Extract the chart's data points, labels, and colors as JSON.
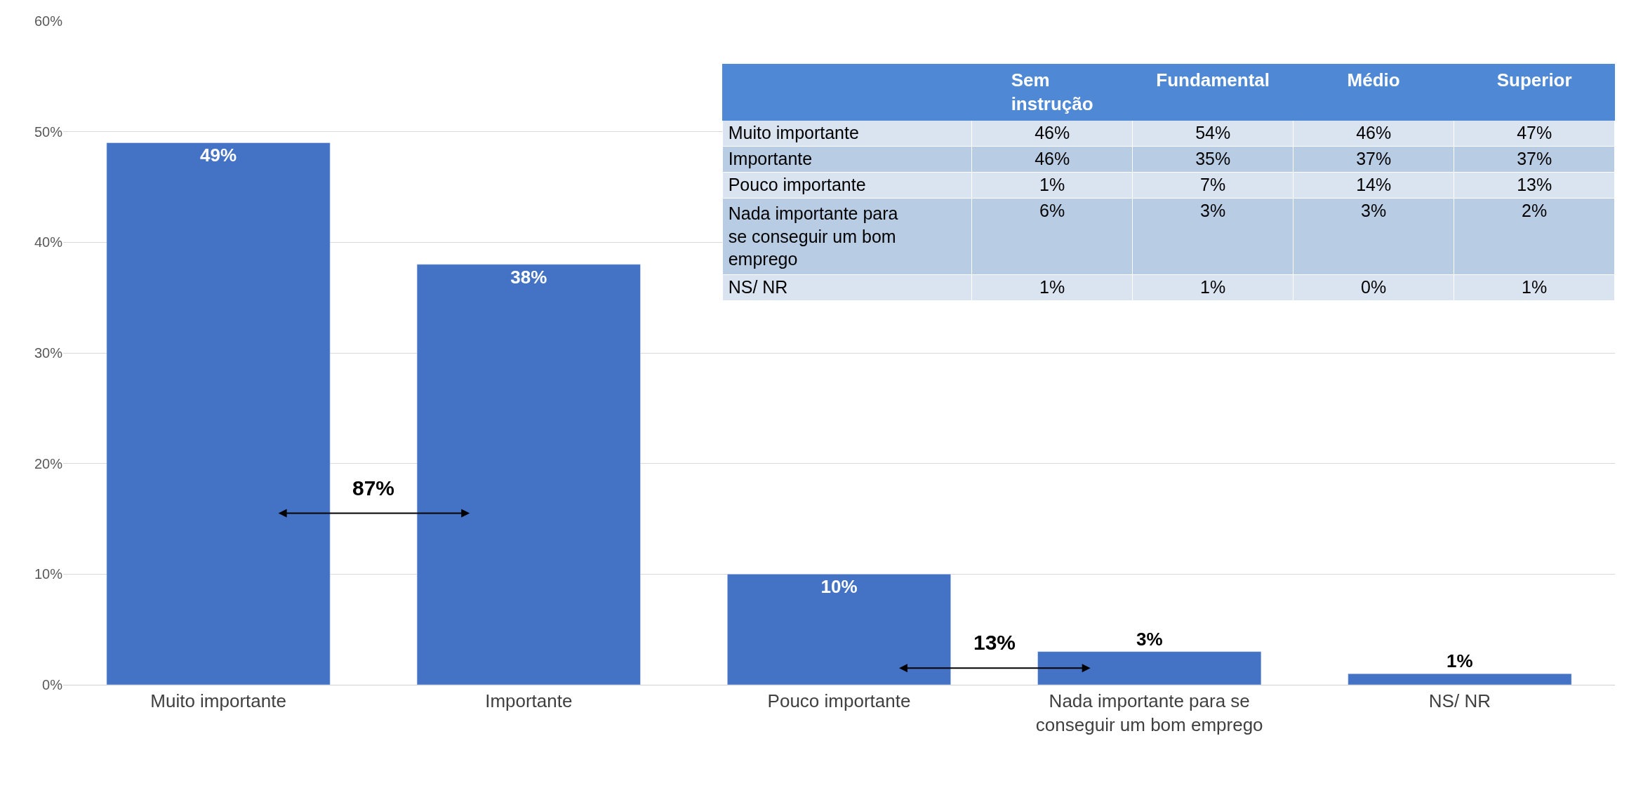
{
  "chart_data": [
    {
      "type": "bar",
      "categories": [
        "Muito importante",
        "Importante",
        "Pouco importante",
        "Nada importante para se conseguir um bom emprego",
        "NS/ NR"
      ],
      "values": [
        49,
        38,
        10,
        3,
        1
      ],
      "color": "#4472c4",
      "data_labels": true,
      "value_labels": [
        "49%",
        "38%",
        "10%",
        "3%",
        "1%"
      ],
      "ylim": [
        0,
        60
      ],
      "yticks": [
        {
          "value": 0,
          "label": "0%"
        },
        {
          "value": 10,
          "label": "10%"
        },
        {
          "value": 20,
          "label": "20%"
        },
        {
          "value": 30,
          "label": "30%"
        },
        {
          "value": 40,
          "label": "40%"
        },
        {
          "value": 50,
          "label": "50%"
        },
        {
          "value": 60,
          "label": "60%"
        }
      ],
      "grid": "y",
      "annotations": [
        "87%",
        "13%"
      ]
    },
    {
      "type": "other",
      "categories": [
        "Sem instrução",
        "Fundamental",
        "Médio",
        "Superior"
      ],
      "y_categories": [
        "Muito importante",
        "Importante",
        "Pouco importante",
        "Nada importante para se conseguir um bom emprego",
        "NS/ NR"
      ],
      "cell_labels": [
        [
          "46%",
          "54%",
          "46%",
          "47%"
        ],
        [
          "46%",
          "35%",
          "37%",
          "37%"
        ],
        [
          "1%",
          "7%",
          "14%",
          "13%"
        ],
        [
          "6%",
          "3%",
          "3%",
          "2%"
        ],
        [
          "1%",
          "1%",
          "0%",
          "1%"
        ]
      ]
    }
  ]
}
